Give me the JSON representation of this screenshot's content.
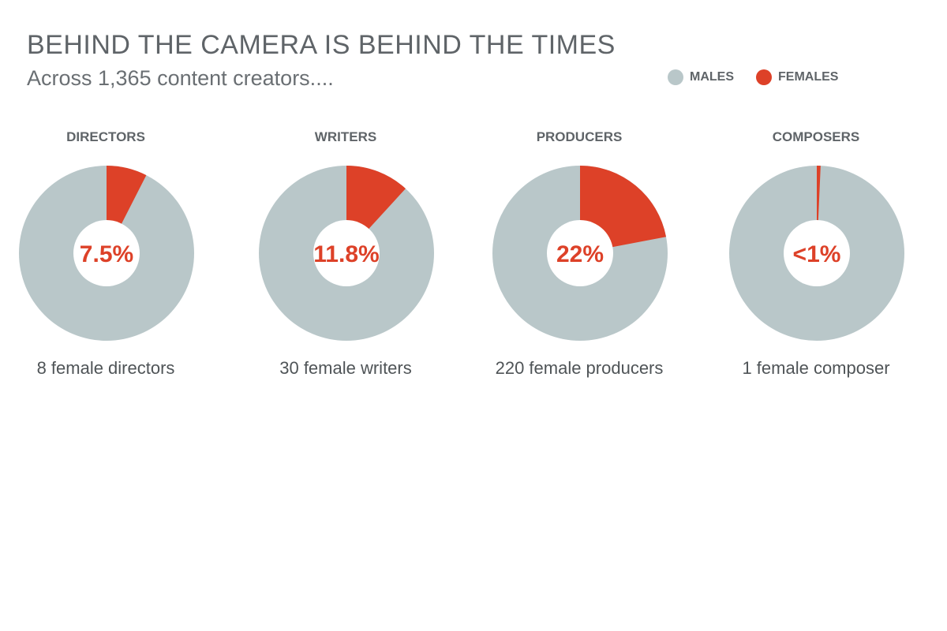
{
  "header": {
    "title": "BEHIND THE CAMERA IS BEHIND THE TIMES",
    "subtitle": "Across 1,365 content creators...."
  },
  "legend": {
    "males_label": "MALES",
    "females_label": "FEMALES"
  },
  "colors": {
    "male": "#b9c7c9",
    "female": "#dd4128",
    "text": "#5f6468"
  },
  "chart_data": [
    {
      "type": "pie",
      "title": "DIRECTORS",
      "categories": [
        "MALES",
        "FEMALES"
      ],
      "values": [
        92.5,
        7.5
      ],
      "center_label": "7.5%",
      "caption": "8 female directors"
    },
    {
      "type": "pie",
      "title": "WRITERS",
      "categories": [
        "MALES",
        "FEMALES"
      ],
      "values": [
        88.2,
        11.8
      ],
      "center_label": "11.8%",
      "caption": "30 female writers"
    },
    {
      "type": "pie",
      "title": "PRODUCERS",
      "categories": [
        "MALES",
        "FEMALES"
      ],
      "values": [
        78,
        22
      ],
      "center_label": "22%",
      "caption": "220 female producers"
    },
    {
      "type": "pie",
      "title": "COMPOSERS",
      "categories": [
        "MALES",
        "FEMALES"
      ],
      "values": [
        99.3,
        0.7
      ],
      "center_label": "<1%",
      "caption": "1 female composer"
    }
  ]
}
